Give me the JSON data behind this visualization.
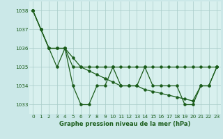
{
  "background_color": "#cbe8e8",
  "plot_bg_color": "#d8f0ee",
  "grid_color": "#a8ccc8",
  "line_color": "#1a5c1a",
  "xlim": [
    -0.5,
    23.5
  ],
  "ylim": [
    1032.5,
    1038.5
  ],
  "yticks": [
    1033,
    1034,
    1035,
    1036,
    1037,
    1038
  ],
  "xticks": [
    0,
    1,
    2,
    3,
    4,
    5,
    6,
    7,
    8,
    9,
    10,
    11,
    12,
    13,
    14,
    15,
    16,
    17,
    18,
    19,
    20,
    21,
    22,
    23
  ],
  "xlabel": "Graphe pression niveau de la mer (hPa)",
  "line1_x": [
    0,
    1,
    2,
    3,
    4,
    5,
    6,
    7,
    8,
    9,
    10,
    11,
    12,
    13,
    14,
    15,
    16,
    17,
    18,
    19,
    20,
    21,
    22,
    23
  ],
  "line1_y": [
    1038,
    1037,
    1036,
    1035,
    1036,
    1034,
    1033,
    1033,
    1034,
    1034,
    1035,
    1034,
    1034,
    1034,
    1035,
    1034,
    1034,
    1034,
    1034,
    1033,
    1033,
    1034,
    1034,
    1035
  ],
  "line2_x": [
    0,
    1,
    2,
    3,
    4,
    5,
    6,
    7,
    8,
    9,
    10,
    11,
    12,
    13,
    14,
    15,
    16,
    17,
    18,
    19,
    20,
    21,
    22,
    23
  ],
  "line2_y": [
    1038,
    1037,
    1036,
    1036,
    1036,
    1035,
    1035,
    1035,
    1035,
    1035,
    1035,
    1035,
    1035,
    1035,
    1035,
    1035,
    1035,
    1035,
    1035,
    1035,
    1035,
    1035,
    1035,
    1035
  ],
  "line3_x": [
    0,
    1,
    2,
    3,
    4,
    5,
    6,
    7,
    8,
    9,
    10,
    11,
    12,
    13,
    14,
    15,
    16,
    17,
    18,
    19,
    20,
    21,
    22,
    23
  ],
  "line3_y": [
    1038,
    1037,
    1036,
    1036,
    1036,
    1035.5,
    1035,
    1034.8,
    1034.6,
    1034.4,
    1034.2,
    1034,
    1034,
    1034,
    1033.8,
    1033.7,
    1033.6,
    1033.5,
    1033.4,
    1033.3,
    1033.2,
    1034,
    1034,
    1035
  ]
}
